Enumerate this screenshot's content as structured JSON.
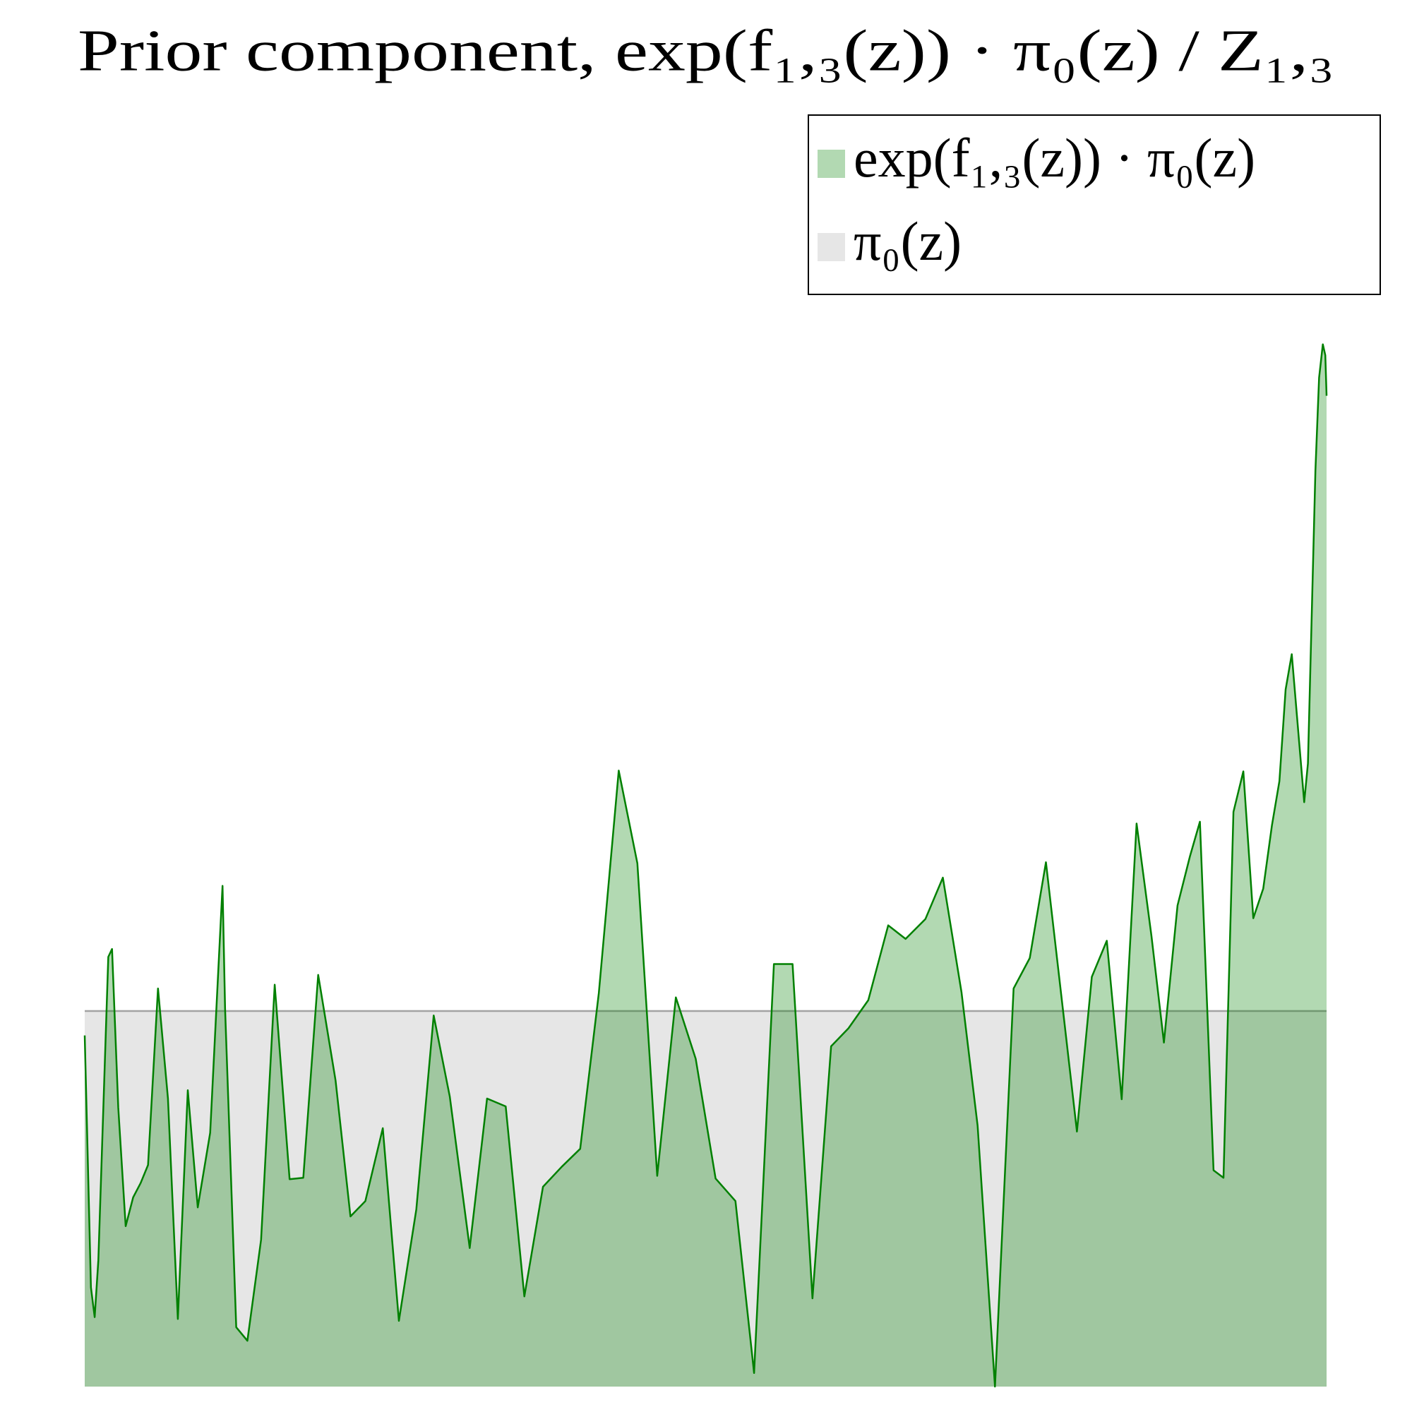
{
  "chart_data": {
    "type": "area",
    "title": "Prior component, exp(f₁,₃(z)) · π₀(z) / Z₁,₃",
    "xlim": [
      0,
      1
    ],
    "ylim": [
      0,
      3
    ],
    "legend": "upper right",
    "series": [
      {
        "name": "π₀(z)",
        "color": "#808080",
        "x": [
          0,
          1
        ],
        "values": [
          1,
          1
        ]
      },
      {
        "name": "exp(f₁,₃(z)) · π₀(z)",
        "color": "#008000",
        "x": [
          0,
          0.005,
          0.008,
          0.011,
          0.019,
          0.022,
          0.027,
          0.033,
          0.039,
          0.045,
          0.051,
          0.059,
          0.067,
          0.075,
          0.083,
          0.091,
          0.101,
          0.111,
          0.113,
          0.122,
          0.131,
          0.142,
          0.153,
          0.165,
          0.176,
          0.188,
          0.202,
          0.214,
          0.226,
          0.24,
          0.253,
          0.267,
          0.281,
          0.294,
          0.31,
          0.324,
          0.339,
          0.354,
          0.369,
          0.384,
          0.399,
          0.414,
          0.43,
          0.445,
          0.461,
          0.476,
          0.492,
          0.508,
          0.524,
          0.539,
          0.555,
          0.57,
          0.586,
          0.601,
          0.615,
          0.631,
          0.647,
          0.661,
          0.677,
          0.691,
          0.706,
          0.719,
          0.733,
          0.748,
          0.761,
          0.774,
          0.788,
          0.799,
          0.811,
          0.823,
          0.835,
          0.847,
          0.859,
          0.869,
          0.88,
          0.89,
          0.898,
          0.909,
          0.917,
          0.925,
          0.933,
          0.941,
          0.949,
          0.956,
          0.962,
          0.967,
          0.972,
          0.982,
          0.985,
          0.991,
          0.994,
          0.997,
          0.999,
          1
        ],
        "values": [
          0.935,
          0.264,
          0.185,
          0.336,
          1.144,
          1.165,
          0.743,
          0.427,
          0.504,
          0.542,
          0.59,
          1.06,
          0.767,
          0.18,
          0.789,
          0.477,
          0.676,
          1.333,
          1.007,
          0.158,
          0.122,
          0.391,
          1.07,
          0.552,
          0.556,
          1.096,
          0.815,
          0.453,
          0.494,
          0.688,
          0.175,
          0.472,
          0.988,
          0.772,
          0.369,
          0.767,
          0.746,
          0.24,
          0.532,
          0.585,
          0.633,
          1.048,
          1.64,
          1.393,
          0.561,
          1.036,
          0.873,
          0.554,
          0.494,
          0.036,
          1.125,
          1.125,
          0.235,
          0.906,
          0.954,
          1.029,
          1.228,
          1.192,
          1.245,
          1.355,
          1.05,
          0.695,
          0,
          1.06,
          1.141,
          1.396,
          0.995,
          0.679,
          1.091,
          1.187,
          0.765,
          1.499,
          1.199,
          0.916,
          1.281,
          1.412,
          1.504,
          0.576,
          0.556,
          1.53,
          1.638,
          1.247,
          1.326,
          1.494,
          1.612,
          1.856,
          1.95,
          1.556,
          1.659,
          2.439,
          2.686,
          2.775,
          2.746,
          2.638
        ]
      }
    ]
  }
}
